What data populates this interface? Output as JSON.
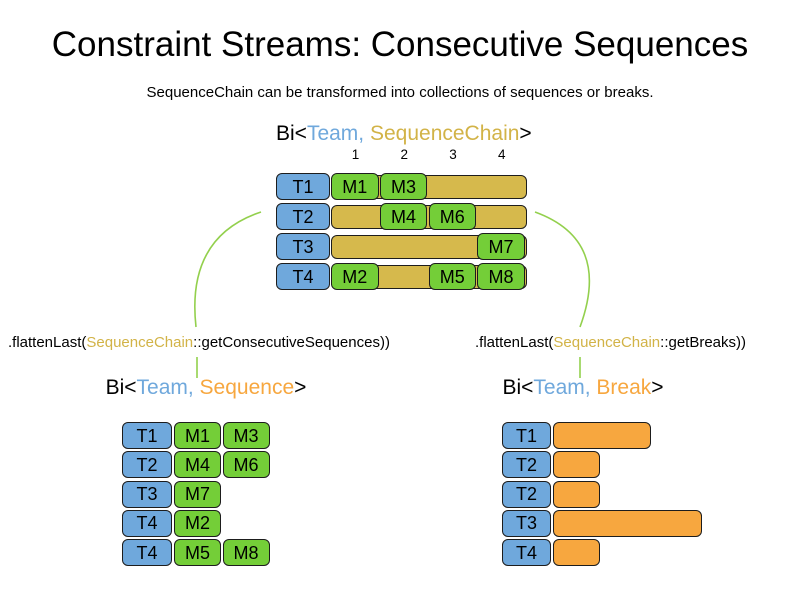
{
  "title": "Constraint Streams: Consecutive Sequences",
  "subtitle": "SequenceChain can be transformed into collections of sequences or breaks.",
  "colors": {
    "team_blue": "#6FA8DC",
    "chain_tan": "#D6B94C",
    "chain_text_gold": "#D2B347",
    "machine_green": "#74CE38",
    "break_orange": "#F7A73F",
    "connector_green": "#93D04D",
    "text_black": "#000000"
  },
  "top_chart": {
    "header_segments": [
      {
        "text": "Bi<",
        "color": "#000000"
      },
      {
        "text": "Team",
        "color": "#6FA8DC"
      },
      {
        "text": ", ",
        "color": "#6FA8DC"
      },
      {
        "text": "SequenceChain",
        "color": "#D2B347"
      },
      {
        "text": ">",
        "color": "#000000"
      }
    ],
    "column_labels": [
      "1",
      "2",
      "3",
      "4"
    ],
    "rows": [
      {
        "team": "T1",
        "machines": [
          {
            "label": "M1",
            "col": 1
          },
          {
            "label": "M3",
            "col": 2
          }
        ]
      },
      {
        "team": "T2",
        "machines": [
          {
            "label": "M4",
            "col": 2
          },
          {
            "label": "M6",
            "col": 3
          }
        ]
      },
      {
        "team": "T3",
        "machines": [
          {
            "label": "M7",
            "col": 4
          }
        ]
      },
      {
        "team": "T4",
        "machines": [
          {
            "label": "M2",
            "col": 1
          },
          {
            "label": "M5",
            "col": 3
          },
          {
            "label": "M8",
            "col": 4
          }
        ]
      }
    ]
  },
  "transforms": {
    "left_segments": [
      {
        "text": ".flattenLast(",
        "color": "#000000"
      },
      {
        "text": "SequenceChain",
        "color": "#D2B347"
      },
      {
        "text": "::getConsecutiveSequences))",
        "color": "#000000"
      }
    ],
    "right_segments": [
      {
        "text": ".flattenLast(",
        "color": "#000000"
      },
      {
        "text": "SequenceChain",
        "color": "#D2B347"
      },
      {
        "text": "::getBreaks))",
        "color": "#000000"
      }
    ]
  },
  "sequence_chart": {
    "header_segments": [
      {
        "text": "Bi<",
        "color": "#000000"
      },
      {
        "text": "Team",
        "color": "#6FA8DC"
      },
      {
        "text": ", ",
        "color": "#6FA8DC"
      },
      {
        "text": "Sequence",
        "color": "#F7A73F"
      },
      {
        "text": ">",
        "color": "#000000"
      }
    ],
    "rows": [
      {
        "team": "T1",
        "machines": [
          "M1",
          "M3"
        ]
      },
      {
        "team": "T2",
        "machines": [
          "M4",
          "M6"
        ]
      },
      {
        "team": "T3",
        "machines": [
          "M7"
        ]
      },
      {
        "team": "T4",
        "machines": [
          "M2"
        ]
      },
      {
        "team": "T4",
        "machines": [
          "M5",
          "M8"
        ]
      }
    ]
  },
  "break_chart": {
    "header_segments": [
      {
        "text": "Bi<",
        "color": "#000000"
      },
      {
        "text": "Team",
        "color": "#6FA8DC"
      },
      {
        "text": ", ",
        "color": "#6FA8DC"
      },
      {
        "text": "Break",
        "color": "#F7A73F"
      },
      {
        "text": ">",
        "color": "#000000"
      }
    ],
    "rows": [
      {
        "team": "T1",
        "break_units": 2
      },
      {
        "team": "T2",
        "break_units": 1
      },
      {
        "team": "T2",
        "break_units": 1
      },
      {
        "team": "T3",
        "break_units": 3
      },
      {
        "team": "T4",
        "break_units": 1
      }
    ]
  }
}
